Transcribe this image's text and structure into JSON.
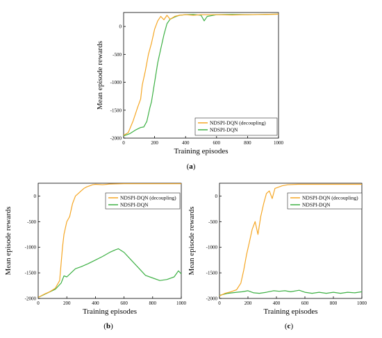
{
  "chart_data": [
    {
      "type": "line",
      "caption": "a",
      "xlabel": "Training episodes",
      "ylabel": "Mean episode rewards",
      "xlim": [
        0,
        1000
      ],
      "ylim": [
        -2000,
        250
      ],
      "xticks": [
        "0",
        "200",
        "400",
        "600",
        "800",
        "1000"
      ],
      "yticks": [
        "-2000",
        "-1500",
        "-1000",
        "-500",
        "0"
      ],
      "legend_position": "bottom-right",
      "series": [
        {
          "name": "NDSPI-DQN (decoupling)",
          "color": "#f5a623",
          "x": [
            0,
            30,
            60,
            90,
            110,
            120,
            140,
            160,
            180,
            200,
            220,
            240,
            260,
            280,
            300,
            330,
            360,
            400,
            450,
            500,
            600,
            700,
            800,
            900,
            1000
          ],
          "y": [
            -1950,
            -1900,
            -1700,
            -1450,
            -1300,
            -1050,
            -800,
            -500,
            -300,
            -50,
            100,
            180,
            120,
            200,
            130,
            180,
            200,
            210,
            200,
            210,
            210,
            205,
            210,
            215,
            220
          ]
        },
        {
          "name": "NDSPI-DQN",
          "color": "#3cb043",
          "x": [
            0,
            40,
            80,
            110,
            130,
            150,
            170,
            180,
            200,
            220,
            240,
            260,
            280,
            300,
            330,
            360,
            400,
            450,
            500,
            520,
            540,
            600,
            700,
            800,
            900,
            1000
          ],
          "y": [
            -1960,
            -1920,
            -1850,
            -1810,
            -1800,
            -1700,
            -1450,
            -1350,
            -1000,
            -650,
            -400,
            -150,
            50,
            130,
            170,
            200,
            210,
            215,
            200,
            100,
            180,
            210,
            215,
            210,
            215,
            220
          ]
        }
      ]
    },
    {
      "type": "line",
      "caption": "b",
      "xlabel": "Training episodes",
      "ylabel": "Mean episode rewards",
      "xlim": [
        0,
        1000
      ],
      "ylim": [
        -2000,
        250
      ],
      "xticks": [
        "0",
        "200",
        "400",
        "600",
        "800",
        "1000"
      ],
      "yticks": [
        "-2000",
        "-1500",
        "-1000",
        "-500",
        "0"
      ],
      "legend_position": "top-right",
      "series": [
        {
          "name": "NDSPI-DQN (decoupling)",
          "color": "#f5a623",
          "x": [
            0,
            40,
            80,
            120,
            150,
            170,
            180,
            200,
            220,
            240,
            260,
            280,
            300,
            320,
            340,
            360,
            380,
            400,
            450,
            500,
            600,
            700,
            800,
            900,
            1000
          ],
          "y": [
            -1980,
            -1920,
            -1870,
            -1800,
            -1650,
            -1000,
            -750,
            -500,
            -400,
            -150,
            0,
            50,
            100,
            150,
            180,
            200,
            220,
            230,
            220,
            235,
            240,
            240,
            240,
            240,
            240
          ]
        },
        {
          "name": "NDSPI-DQN",
          "color": "#3cb043",
          "x": [
            0,
            60,
            120,
            160,
            180,
            200,
            230,
            260,
            300,
            350,
            400,
            450,
            500,
            540,
            560,
            600,
            650,
            700,
            750,
            800,
            850,
            900,
            950,
            980,
            1000
          ],
          "y": [
            -1980,
            -1900,
            -1820,
            -1700,
            -1560,
            -1580,
            -1500,
            -1420,
            -1380,
            -1320,
            -1250,
            -1180,
            -1100,
            -1050,
            -1030,
            -1100,
            -1250,
            -1400,
            -1550,
            -1600,
            -1650,
            -1630,
            -1580,
            -1460,
            -1520
          ]
        }
      ]
    },
    {
      "type": "line",
      "caption": "c",
      "xlabel": "Training episodes",
      "ylabel": "Mean episode rewards",
      "xlim": [
        0,
        1000
      ],
      "ylim": [
        -2000,
        250
      ],
      "xticks": [
        "0",
        "200",
        "400",
        "600",
        "800",
        "1000"
      ],
      "yticks": [
        "-2000",
        "-1500",
        "-1000",
        "-500",
        "0"
      ],
      "legend_position": "top-right",
      "series": [
        {
          "name": "NDSPI-DQN (decoupling)",
          "color": "#f5a623",
          "x": [
            0,
            40,
            80,
            120,
            150,
            170,
            190,
            210,
            230,
            250,
            270,
            290,
            310,
            330,
            350,
            370,
            390,
            410,
            440,
            480,
            550,
            700,
            800,
            900,
            1000
          ],
          "y": [
            -1950,
            -1900,
            -1870,
            -1830,
            -1700,
            -1450,
            -1150,
            -900,
            -650,
            -500,
            -750,
            -400,
            -150,
            50,
            100,
            -50,
            150,
            170,
            200,
            220,
            230,
            230,
            230,
            230,
            230
          ]
        },
        {
          "name": "NDSPI-DQN",
          "color": "#3cb043",
          "x": [
            0,
            60,
            120,
            160,
            200,
            240,
            280,
            330,
            380,
            420,
            460,
            500,
            560,
            600,
            650,
            700,
            750,
            800,
            850,
            900,
            950,
            1000
          ],
          "y": [
            -1940,
            -1900,
            -1880,
            -1870,
            -1850,
            -1890,
            -1900,
            -1880,
            -1850,
            -1860,
            -1850,
            -1870,
            -1840,
            -1880,
            -1900,
            -1880,
            -1900,
            -1880,
            -1900,
            -1880,
            -1890,
            -1870
          ]
        }
      ]
    }
  ]
}
